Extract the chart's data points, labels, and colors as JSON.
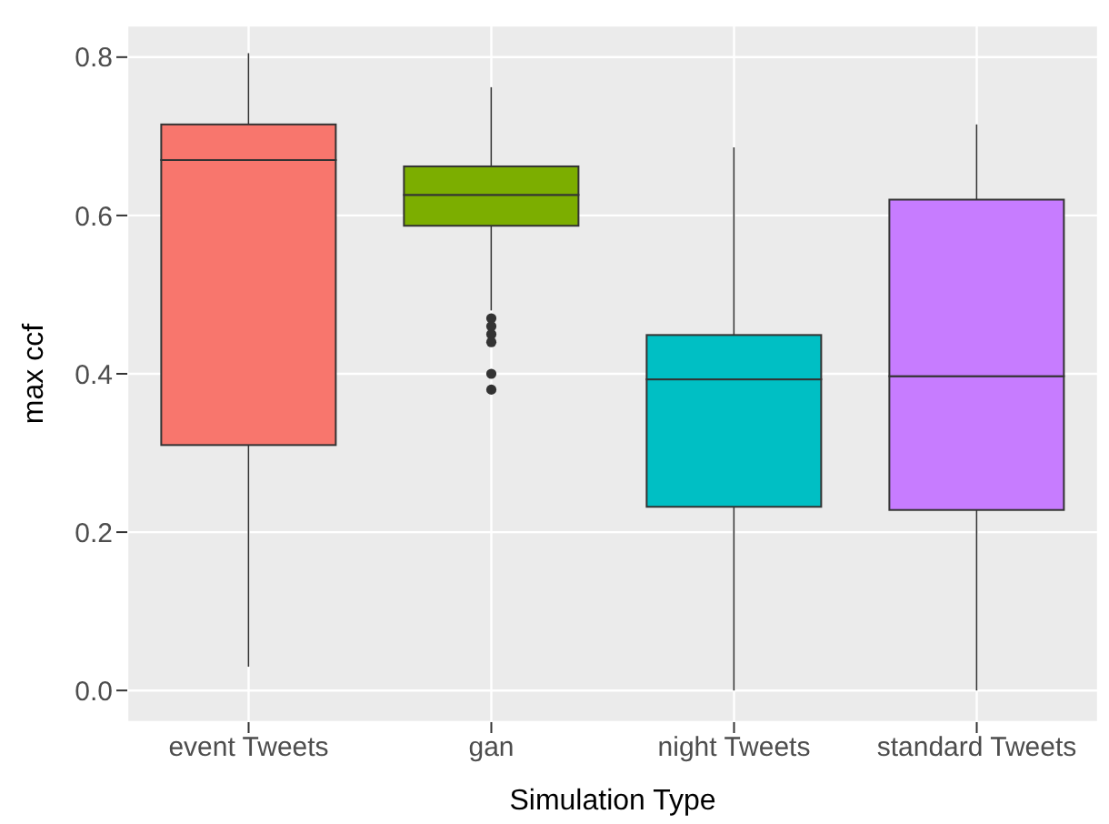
{
  "chart_data": {
    "type": "box",
    "xlabel": "Simulation Type",
    "ylabel": "max ccf",
    "categories": [
      "event Tweets",
      "gan",
      "night Tweets",
      "standard Tweets"
    ],
    "colors": [
      "#f8766d",
      "#7cae00",
      "#00bfc4",
      "#c77cff"
    ],
    "boxes": [
      {
        "low": 0.03,
        "q1": 0.31,
        "median": 0.67,
        "q3": 0.715,
        "high": 0.805
      },
      {
        "low": 0.48,
        "q1": 0.587,
        "median": 0.626,
        "q3": 0.662,
        "high": 0.762,
        "outliers": [
          0.47,
          0.46,
          0.45,
          0.44,
          0.4,
          0.38
        ]
      },
      {
        "low": 0.0,
        "q1": 0.232,
        "median": 0.393,
        "q3": 0.449,
        "high": 0.686
      },
      {
        "low": 0.0,
        "q1": 0.228,
        "median": 0.397,
        "q3": 0.62,
        "high": 0.715
      }
    ],
    "ylim": [
      -0.04,
      0.84
    ],
    "yticks": [
      {
        "value": 0,
        "label": "0.0"
      },
      {
        "value": 0.2,
        "label": "0.2"
      },
      {
        "value": 0.4,
        "label": "0.4"
      },
      {
        "value": 0.6,
        "label": "0.6"
      },
      {
        "value": 0.8,
        "label": "0.8"
      }
    ],
    "grid": true
  }
}
